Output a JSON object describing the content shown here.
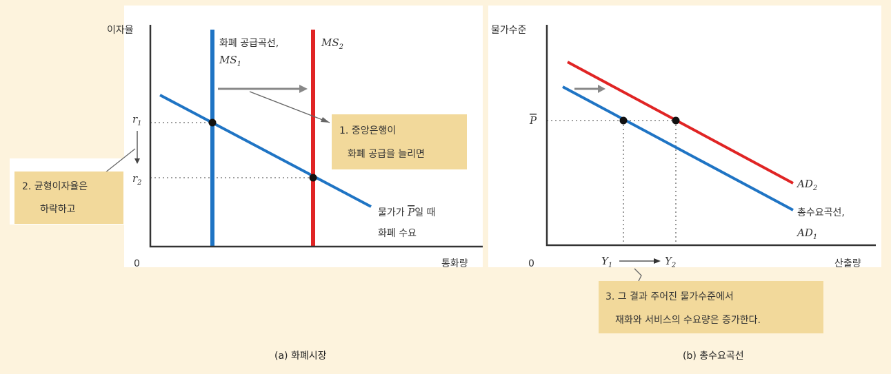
{
  "colors": {
    "background": "#fdf3dd",
    "panel": "#ffffff",
    "money_supply_and_demand_blue": "#1f74c4",
    "new_supply_red": "#e02424",
    "note_box": "#f2d99b"
  },
  "panel_a": {
    "caption": "(a) 화폐시장",
    "y_axis_label": "이자율",
    "x_axis_label": "통화량",
    "origin_label": "0",
    "r1_label": "r",
    "r1_sub": "1",
    "r2_label": "r",
    "r2_sub": "2",
    "ms1_label_line1": "화폐 공급곡선,",
    "ms1_label_line2": "MS",
    "ms1_sub": "1",
    "ms2_label": "MS",
    "ms2_sub": "2",
    "md_label_line1": "물가가 ",
    "md_label_pbar": "P",
    "md_label_line1_end": "일 때",
    "md_label_line2": "화폐 수요",
    "note1_line1": "1. 중앙은행이",
    "note1_line2": "화폐 공급을 늘리면",
    "note2_line1": "2. 균형이자율은",
    "note2_line2": "하락하고"
  },
  "panel_b": {
    "caption": "(b) 총수요곡선",
    "y_axis_label": "물가수준",
    "x_axis_label": "산출량",
    "origin_label": "0",
    "p_label": "P",
    "y1_label": "Y",
    "y1_sub": "1",
    "y2_label": "Y",
    "y2_sub": "2",
    "ad2_label": "AD",
    "ad2_sub": "2",
    "ad1_label_line1": "총수요곡선,",
    "ad1_label_line2": "AD",
    "ad1_sub": "1",
    "note3_line1": "3. 그 결과 주어진 물가수준에서",
    "note3_line2": "재화와 서비스의 수요량은 증가한다."
  }
}
